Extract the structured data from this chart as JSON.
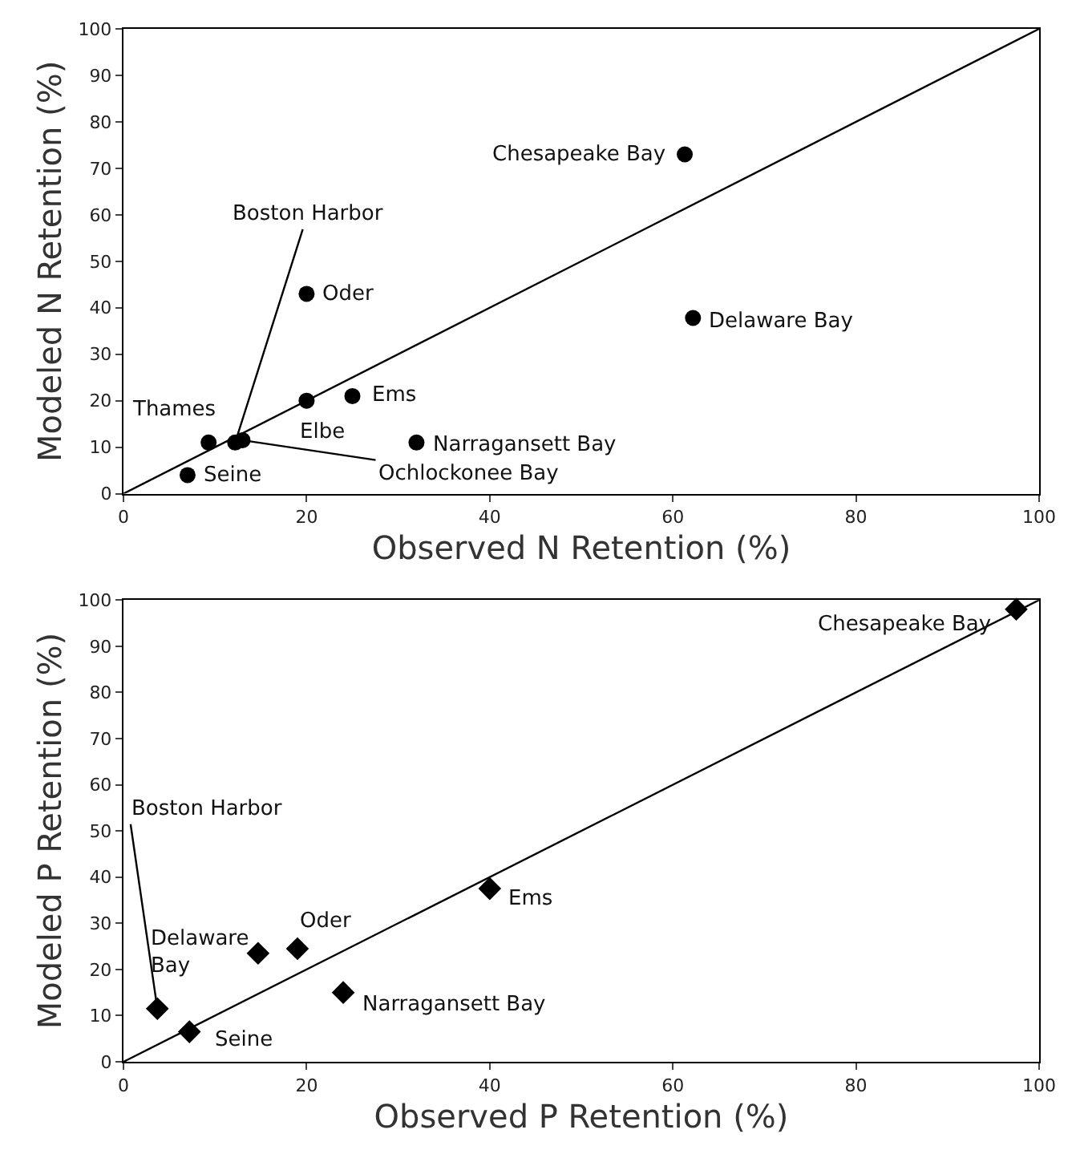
{
  "chart_data": [
    {
      "type": "scatter",
      "xlabel": "Observed N Retention (%)",
      "ylabel": "Modeled N Retention (%)",
      "xlim": [
        0,
        100
      ],
      "ylim": [
        0,
        100
      ],
      "xticks": [
        0,
        20,
        40,
        60,
        80,
        100
      ],
      "yticks": [
        0,
        10,
        20,
        30,
        40,
        50,
        60,
        70,
        80,
        90,
        100
      ],
      "marker": "circle",
      "series": [
        {
          "color": "#000000",
          "x": [
            61.3,
            62.2,
            20,
            25,
            20,
            32,
            9.3,
            12.2,
            13,
            7
          ],
          "values": [
            73,
            37.8,
            43,
            21,
            20,
            11,
            11,
            11,
            11.5,
            4
          ]
        },
        {
          "type": "line",
          "color": "#000000",
          "x": [
            0,
            100
          ],
          "values": [
            0,
            100
          ],
          "marker": "none",
          "line_style": "solid"
        }
      ],
      "annotations": [
        {
          "text": "Chesapeake Bay",
          "x": 61.3,
          "y": 73
        },
        {
          "text": "Delaware Bay",
          "x": 62.2,
          "y": 37.8
        },
        {
          "text": "Oder",
          "x": 20,
          "y": 43
        },
        {
          "text": "Ems",
          "x": 25,
          "y": 21
        },
        {
          "text": "Elbe",
          "x": 20,
          "y": 20
        },
        {
          "text": "Narragansett Bay",
          "x": 32,
          "y": 11
        },
        {
          "text": "Thames",
          "x": 9.3,
          "y": 11
        },
        {
          "text": "Boston Harbor",
          "x": 12.2,
          "y": 11
        },
        {
          "text": "Ochlockonee Bay",
          "x": 13,
          "y": 11.5
        },
        {
          "text": "Seine",
          "x": 7,
          "y": 4
        }
      ]
    },
    {
      "type": "scatter",
      "xlabel": "Observed P Retention (%)",
      "ylabel": "Modeled P Retention (%)",
      "xlim": [
        0,
        100
      ],
      "ylim": [
        0,
        100
      ],
      "xticks": [
        0,
        20,
        40,
        60,
        80,
        100
      ],
      "yticks": [
        0,
        10,
        20,
        30,
        40,
        50,
        60,
        70,
        80,
        90,
        100
      ],
      "marker": "diamond",
      "series": [
        {
          "color": "#000000",
          "x": [
            97.5,
            40,
            19,
            14.7,
            24,
            3.7,
            7.2
          ],
          "values": [
            98,
            37.5,
            24.5,
            23.5,
            15,
            11.5,
            6.5
          ]
        },
        {
          "type": "line",
          "color": "#000000",
          "x": [
            0,
            100
          ],
          "values": [
            0,
            100
          ],
          "marker": "none",
          "line_style": "solid"
        }
      ],
      "annotations": [
        {
          "text": "Chesapeake Bay",
          "x": 97.5,
          "y": 98
        },
        {
          "text": "Ems",
          "x": 40,
          "y": 37.5
        },
        {
          "text": "Oder",
          "x": 19,
          "y": 24.5
        },
        {
          "text": "Delaware Bay",
          "x": 14.7,
          "y": 23.5
        },
        {
          "text": "Narragansett Bay",
          "x": 24,
          "y": 15
        },
        {
          "text": "Boston Harbor",
          "x": 3.7,
          "y": 11.5
        },
        {
          "text": "Seine",
          "x": 7.2,
          "y": 6.5
        }
      ]
    }
  ]
}
